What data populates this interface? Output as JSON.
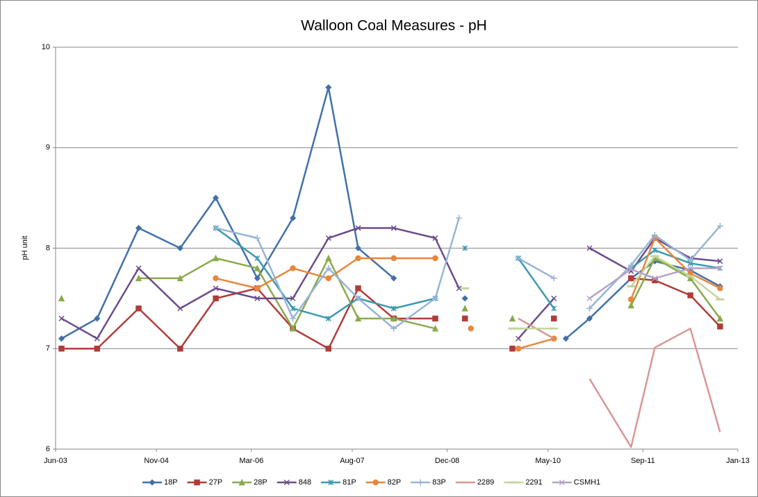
{
  "chart_data": {
    "type": "line",
    "title": "Walloon Coal Measures - pH",
    "y_label": "pH unit",
    "xlim": [
      "2003-06",
      "2013-01"
    ],
    "xticks": [
      {
        "value": "2003-06",
        "label": "Jun-03"
      },
      {
        "value": "2004-11",
        "label": "Nov-04"
      },
      {
        "value": "2006-03",
        "label": "Mar-06"
      },
      {
        "value": "2007-08",
        "label": "Aug-07"
      },
      {
        "value": "2008-12",
        "label": "Dec-08"
      },
      {
        "value": "2010-05",
        "label": "May-10"
      },
      {
        "value": "2011-09",
        "label": "Sep-11"
      },
      {
        "value": "2013-01",
        "label": "Jan-13"
      }
    ],
    "ylim": [
      6,
      10
    ],
    "yticks": [
      6,
      7,
      8,
      9,
      10
    ],
    "grid": true,
    "legend": "bottom",
    "series": [
      {
        "name": "18P",
        "color": "#4170a8",
        "marker": "diamond",
        "x": [
          "2003-07",
          "2004-01",
          "2004-08",
          "2005-03",
          "2005-09",
          "2006-04",
          "2006-10",
          "2007-04",
          "2007-09",
          "2008-03",
          null,
          "2009-03",
          null,
          "2010-08",
          "2010-12",
          "2011-07",
          "2011-11",
          "2012-05",
          "2012-10"
        ],
        "values": [
          7.1,
          7.3,
          8.2,
          8.0,
          8.5,
          7.7,
          8.3,
          9.6,
          8.0,
          7.7,
          null,
          7.5,
          null,
          7.1,
          7.3,
          7.7,
          7.87,
          7.78,
          7.62
        ]
      },
      {
        "name": "27P",
        "color": "#b03c3a",
        "marker": "square",
        "x": [
          "2003-07",
          "2004-01",
          "2004-08",
          "2005-03",
          "2005-09",
          "2006-04",
          "2006-10",
          "2007-04",
          "2007-09",
          "2008-03",
          "2008-10",
          null,
          "2009-03",
          null,
          "2009-11",
          null,
          "2010-06",
          null,
          "2011-07",
          "2011-11",
          "2012-05",
          "2012-10"
        ],
        "values": [
          7.0,
          7.0,
          7.4,
          7.0,
          7.5,
          7.6,
          7.2,
          7.0,
          7.6,
          7.3,
          7.3,
          null,
          7.3,
          null,
          7.0,
          null,
          7.3,
          null,
          7.7,
          7.68,
          7.53,
          7.22
        ]
      },
      {
        "name": "28P",
        "color": "#8aaa4a",
        "marker": "triangle",
        "x": [
          "2003-07",
          null,
          "2004-08",
          "2005-03",
          "2005-09",
          "2006-04",
          "2006-10",
          "2007-04",
          "2007-09",
          "2008-03",
          "2008-10",
          null,
          "2009-03",
          null,
          "2009-11",
          null,
          "2011-07",
          "2011-11",
          "2012-05",
          "2012-10"
        ],
        "values": [
          7.5,
          null,
          7.7,
          7.7,
          7.9,
          7.8,
          7.2,
          7.9,
          7.3,
          7.3,
          7.2,
          null,
          7.4,
          null,
          7.3,
          null,
          7.43,
          7.9,
          7.7,
          7.3
        ]
      },
      {
        "name": "848",
        "color": "#6b4c8c",
        "marker": "x",
        "x": [
          "2003-07",
          "2004-01",
          "2004-08",
          "2005-03",
          "2005-09",
          "2006-04",
          "2006-10",
          "2007-04",
          "2007-09",
          "2008-03",
          "2008-10",
          "2009-02",
          null,
          "2009-12",
          "2010-06",
          null,
          "2010-12",
          "2011-07",
          "2011-11",
          "2012-05",
          "2012-10"
        ],
        "values": [
          7.3,
          7.1,
          7.8,
          7.4,
          7.6,
          7.5,
          7.5,
          8.1,
          8.2,
          8.2,
          8.1,
          7.6,
          null,
          7.1,
          7.5,
          null,
          8.0,
          7.77,
          8.1,
          7.9,
          7.87
        ]
      },
      {
        "name": "81P",
        "color": "#3a9ab0",
        "marker": "star",
        "x": [
          "2005-09",
          "2006-04",
          "2006-10",
          "2007-04",
          "2007-09",
          "2008-03",
          "2008-10",
          null,
          "2009-03",
          null,
          "2009-12",
          "2010-06",
          null,
          "2011-07",
          "2011-11",
          "2012-05",
          "2012-10"
        ],
        "values": [
          8.2,
          7.9,
          7.4,
          7.3,
          7.5,
          7.4,
          7.5,
          null,
          8.0,
          null,
          7.9,
          7.4,
          null,
          7.8,
          7.98,
          7.85,
          7.8
        ]
      },
      {
        "name": "82P",
        "color": "#e8863a",
        "marker": "circle",
        "x": [
          "2005-09",
          "2006-04",
          "2006-10",
          "2007-04",
          "2007-09",
          "2008-03",
          "2008-10",
          null,
          "2009-04",
          null,
          "2009-12",
          "2010-06",
          null,
          "2011-07",
          "2011-11",
          "2012-05",
          "2012-10"
        ],
        "values": [
          7.7,
          7.6,
          7.8,
          7.7,
          7.9,
          7.9,
          7.9,
          null,
          7.2,
          null,
          7.0,
          7.1,
          null,
          7.49,
          8.1,
          7.75,
          7.6
        ]
      },
      {
        "name": "83P",
        "color": "#97b4d8",
        "marker": "plus",
        "x": [
          "2005-09",
          "2006-04",
          "2006-10",
          "2007-04",
          "2007-09",
          "2008-03",
          "2008-10",
          "2009-02",
          null,
          "2009-12",
          "2010-06",
          null,
          "2010-12",
          "2011-07",
          "2011-11",
          "2012-05",
          "2012-10"
        ],
        "values": [
          8.2,
          8.1,
          7.3,
          7.8,
          7.5,
          7.2,
          7.5,
          8.3,
          null,
          7.9,
          7.7,
          null,
          7.4,
          7.83,
          8.13,
          7.88,
          8.22
        ]
      },
      {
        "name": "2289",
        "color": "#d99694",
        "marker": "none",
        "x": [
          "2009-12",
          "2010-06",
          null,
          "2010-12",
          "2011-07",
          "2011-11",
          "2012-05",
          "2012-10"
        ],
        "values": [
          7.3,
          7.1,
          null,
          6.7,
          6.02,
          7.01,
          7.2,
          6.17
        ]
      },
      {
        "name": "2291",
        "color": "#c3d69b",
        "marker": "dash",
        "x": [
          "2009-03",
          null,
          "2009-11",
          "2009-12",
          "2010-06",
          null,
          "2011-07",
          "2011-11",
          "2012-05",
          "2012-10"
        ],
        "values": [
          7.6,
          null,
          7.2,
          7.2,
          7.2,
          null,
          7.62,
          7.92,
          7.72,
          7.49
        ]
      },
      {
        "name": "CSMH1",
        "color": "#b3a2c7",
        "marker": "x",
        "x": [
          "2010-12",
          "2011-07",
          "2011-11",
          "2012-05",
          "2012-10"
        ],
        "values": [
          7.5,
          7.79,
          7.7,
          7.8,
          7.8
        ]
      }
    ]
  }
}
